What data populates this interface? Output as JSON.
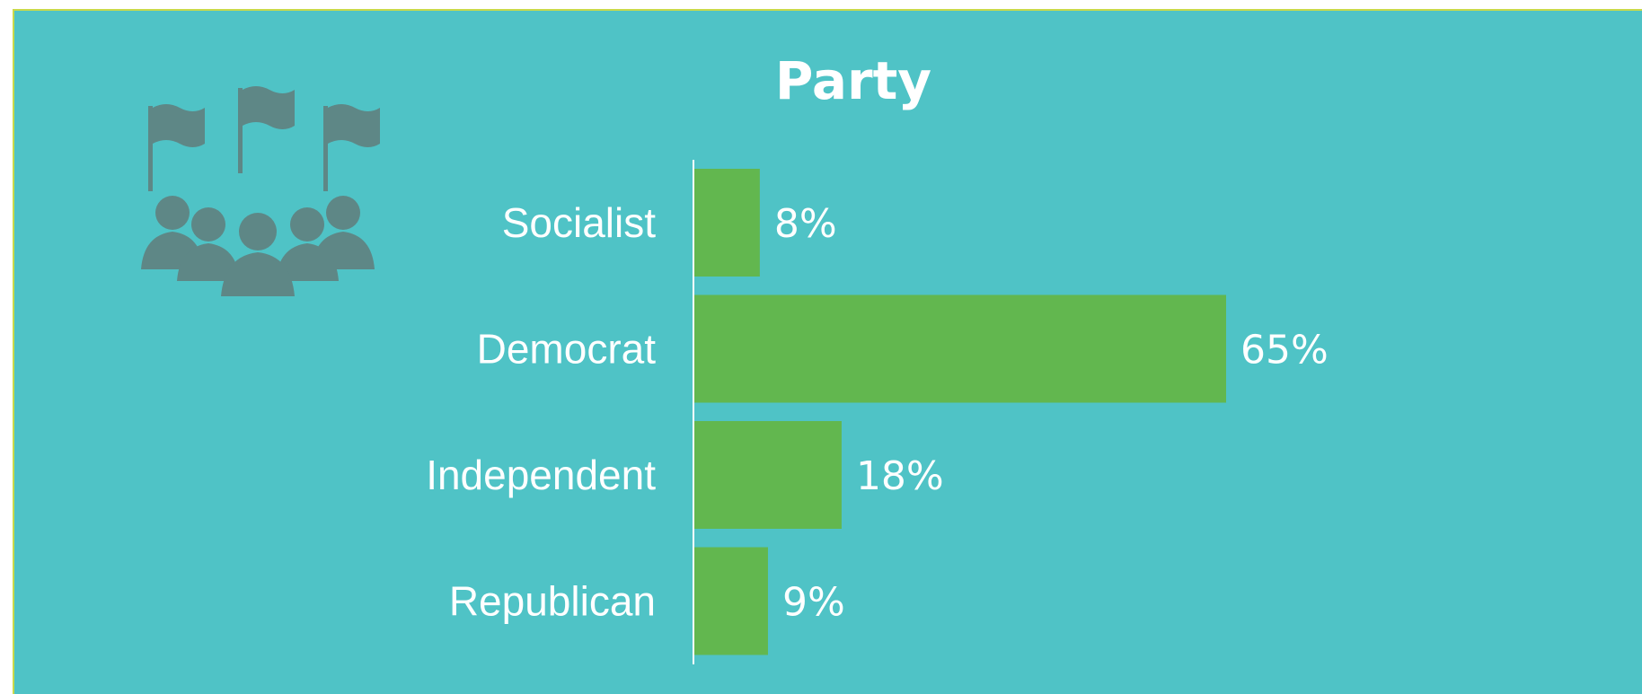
{
  "colors": {
    "background": "#4fc3c6",
    "bar": "#62b74f",
    "icon": "#5e8786",
    "axis": "#ffffff",
    "border": "#c9d94a"
  },
  "icon": {
    "name": "party-crowd-with-flags-icon"
  },
  "chart_data": {
    "type": "bar",
    "orientation": "horizontal",
    "title": "Party",
    "categories": [
      "Socialist",
      "Democrat",
      "Independent",
      "Republican"
    ],
    "values": [
      8,
      65,
      18,
      9
    ],
    "value_labels": [
      "8%",
      "65%",
      "18%",
      "9%"
    ],
    "unit": "%",
    "xlim": [
      0,
      100
    ],
    "grid": false,
    "legend": "none"
  }
}
